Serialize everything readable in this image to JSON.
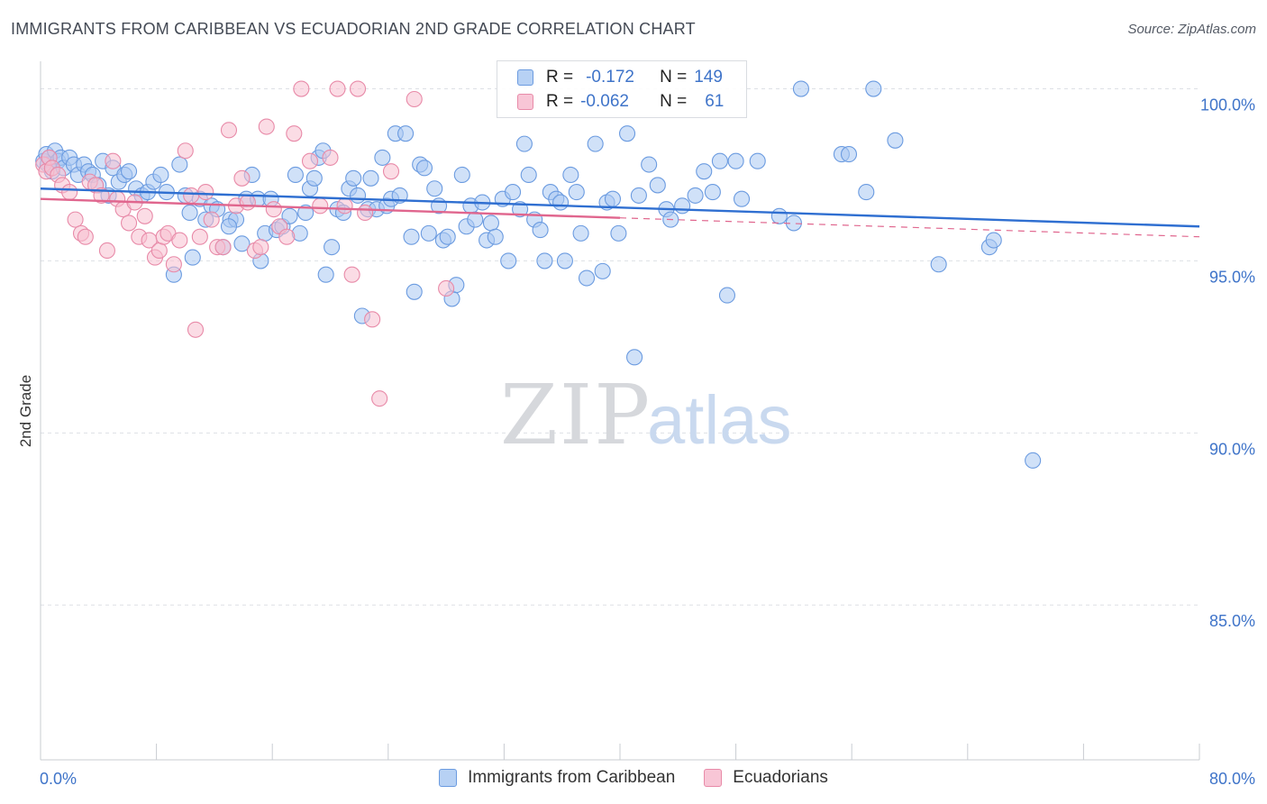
{
  "title": "IMMIGRANTS FROM CARIBBEAN VS ECUADORIAN 2ND GRADE CORRELATION CHART",
  "source": "Source: ZipAtlas.com",
  "watermark": {
    "zip": "ZIP",
    "atlas": "atlas"
  },
  "legend_top": {
    "rows": [
      {
        "r_label": "R =",
        "r_value": "-0.172",
        "n_label": "N =",
        "n_value": "149"
      },
      {
        "r_label": "R =",
        "r_value": "-0.062",
        "n_label": "N =",
        "n_value": "61"
      }
    ]
  },
  "legend_bottom": {
    "items": [
      {
        "label": "Immigrants from Caribbean"
      },
      {
        "label": "Ecuadorians"
      }
    ]
  },
  "colors": {
    "blue_fill": "#a9c8f2",
    "blue_stroke": "#6b9be0",
    "blue_line": "#2f6fd1",
    "pink_fill": "#f7bfd0",
    "pink_stroke": "#e88aa8",
    "pink_line": "#e0668e",
    "axis_text": "#3f74c9",
    "grid": "#dde0e5"
  },
  "chart_data": {
    "type": "scatter",
    "title": "IMMIGRANTS FROM CARIBBEAN VS ECUADORIAN 2ND GRADE CORRELATION CHART",
    "xlabel": "",
    "ylabel": "2nd Grade",
    "xlim": [
      0,
      80
    ],
    "ylim": [
      80.5,
      100.8
    ],
    "x_tick_labels": [
      {
        "value": 0,
        "label": "0.0%"
      },
      {
        "value": 80,
        "label": "80.0%"
      }
    ],
    "y_tick_labels": [
      {
        "value": 100,
        "label": "100.0%"
      },
      {
        "value": 95,
        "label": "95.0%"
      },
      {
        "value": 90,
        "label": "90.0%"
      },
      {
        "value": 85,
        "label": "85.0%"
      }
    ],
    "y_gridlines": [
      100,
      95,
      90,
      85
    ],
    "x_minor_ticks": [
      8,
      16,
      24,
      32,
      40,
      48,
      56,
      64,
      72,
      80
    ],
    "series": [
      {
        "name": "Immigrants from Caribbean",
        "color_key": "blue",
        "r": -0.172,
        "n": 149,
        "trend": {
          "x0": 0,
          "y0": 97.1,
          "x1": 80,
          "y1": 96.0,
          "dash_from": null
        },
        "points": [
          [
            0.2,
            97.9
          ],
          [
            0.4,
            98.1
          ],
          [
            0.5,
            97.8
          ],
          [
            0.6,
            98.0
          ],
          [
            0.8,
            97.6
          ],
          [
            1.0,
            98.2
          ],
          [
            1.2,
            97.9
          ],
          [
            1.4,
            98.0
          ],
          [
            1.6,
            97.7
          ],
          [
            2.0,
            98.0
          ],
          [
            2.3,
            97.8
          ],
          [
            2.6,
            97.5
          ],
          [
            3.0,
            97.8
          ],
          [
            3.3,
            97.6
          ],
          [
            3.6,
            97.5
          ],
          [
            4.0,
            97.2
          ],
          [
            4.3,
            97.9
          ],
          [
            4.7,
            96.9
          ],
          [
            5.0,
            97.7
          ],
          [
            5.4,
            97.3
          ],
          [
            5.8,
            97.5
          ],
          [
            6.1,
            97.6
          ],
          [
            6.6,
            97.1
          ],
          [
            7.0,
            96.9
          ],
          [
            7.4,
            97.0
          ],
          [
            7.8,
            97.3
          ],
          [
            8.3,
            97.5
          ],
          [
            8.7,
            97.0
          ],
          [
            9.2,
            94.6
          ],
          [
            9.6,
            97.8
          ],
          [
            10.0,
            96.9
          ],
          [
            10.3,
            96.4
          ],
          [
            10.5,
            95.1
          ],
          [
            11.0,
            96.8
          ],
          [
            11.4,
            96.2
          ],
          [
            11.8,
            96.6
          ],
          [
            12.2,
            96.5
          ],
          [
            12.6,
            95.4
          ],
          [
            13.1,
            96.2
          ],
          [
            13.5,
            96.2
          ],
          [
            13.9,
            95.5
          ],
          [
            14.2,
            96.8
          ],
          [
            14.6,
            97.5
          ],
          [
            15.0,
            96.8
          ],
          [
            15.2,
            95.0
          ],
          [
            15.5,
            95.8
          ],
          [
            15.9,
            96.8
          ],
          [
            16.3,
            95.9
          ],
          [
            16.7,
            96.0
          ],
          [
            17.2,
            96.3
          ],
          [
            17.6,
            97.5
          ],
          [
            17.9,
            95.8
          ],
          [
            18.3,
            96.4
          ],
          [
            18.6,
            97.1
          ],
          [
            18.9,
            97.4
          ],
          [
            19.2,
            98.0
          ],
          [
            19.5,
            98.2
          ],
          [
            19.7,
            94.6
          ],
          [
            20.1,
            95.4
          ],
          [
            20.5,
            96.5
          ],
          [
            20.9,
            96.4
          ],
          [
            21.3,
            97.1
          ],
          [
            21.6,
            97.4
          ],
          [
            21.9,
            96.9
          ],
          [
            22.2,
            93.4
          ],
          [
            22.6,
            96.5
          ],
          [
            22.8,
            97.4
          ],
          [
            23.2,
            96.5
          ],
          [
            23.6,
            98.0
          ],
          [
            23.9,
            96.6
          ],
          [
            24.2,
            96.8
          ],
          [
            24.5,
            98.7
          ],
          [
            24.8,
            96.9
          ],
          [
            25.2,
            98.7
          ],
          [
            25.6,
            95.7
          ],
          [
            25.8,
            94.1
          ],
          [
            26.2,
            97.8
          ],
          [
            26.5,
            97.7
          ],
          [
            26.8,
            95.8
          ],
          [
            27.2,
            97.1
          ],
          [
            27.5,
            96.6
          ],
          [
            27.8,
            95.6
          ],
          [
            28.1,
            95.7
          ],
          [
            28.4,
            93.9
          ],
          [
            28.7,
            94.3
          ],
          [
            29.1,
            97.5
          ],
          [
            29.4,
            96.0
          ],
          [
            29.7,
            96.6
          ],
          [
            30.0,
            96.2
          ],
          [
            30.5,
            96.7
          ],
          [
            30.8,
            95.6
          ],
          [
            31.1,
            96.1
          ],
          [
            31.4,
            95.7
          ],
          [
            31.9,
            96.8
          ],
          [
            32.3,
            95.0
          ],
          [
            32.6,
            97.0
          ],
          [
            33.1,
            96.5
          ],
          [
            33.4,
            98.4
          ],
          [
            33.7,
            97.5
          ],
          [
            34.1,
            96.2
          ],
          [
            34.5,
            95.9
          ],
          [
            34.8,
            95.0
          ],
          [
            35.2,
            97.0
          ],
          [
            35.6,
            96.8
          ],
          [
            35.9,
            96.7
          ],
          [
            36.2,
            95.0
          ],
          [
            36.6,
            97.5
          ],
          [
            37.0,
            97.0
          ],
          [
            37.3,
            95.8
          ],
          [
            37.7,
            94.5
          ],
          [
            38.3,
            98.4
          ],
          [
            38.8,
            94.7
          ],
          [
            39.1,
            96.7
          ],
          [
            39.5,
            96.8
          ],
          [
            39.9,
            95.8
          ],
          [
            40.5,
            98.7
          ],
          [
            41.0,
            92.2
          ],
          [
            41.3,
            96.9
          ],
          [
            42.0,
            97.8
          ],
          [
            42.6,
            97.2
          ],
          [
            43.2,
            96.5
          ],
          [
            44.3,
            96.6
          ],
          [
            45.2,
            96.9
          ],
          [
            45.8,
            97.6
          ],
          [
            46.4,
            97.0
          ],
          [
            46.9,
            97.9
          ],
          [
            47.4,
            94.0
          ],
          [
            48.0,
            97.9
          ],
          [
            48.4,
            96.8
          ],
          [
            49.5,
            97.9
          ],
          [
            51.0,
            96.3
          ],
          [
            52.0,
            96.1
          ],
          [
            52.5,
            100.0
          ],
          [
            55.3,
            98.1
          ],
          [
            55.8,
            98.1
          ],
          [
            57.0,
            97.0
          ],
          [
            57.5,
            100.0
          ],
          [
            59.0,
            98.5
          ],
          [
            62.0,
            94.9
          ],
          [
            65.5,
            95.4
          ],
          [
            65.8,
            95.6
          ],
          [
            68.5,
            89.2
          ],
          [
            43.5,
            96.2
          ],
          [
            13.0,
            96.0
          ]
        ]
      },
      {
        "name": "Ecuadorians",
        "color_key": "pink",
        "r": -0.062,
        "n": 61,
        "trend": {
          "x0": 0,
          "y0": 96.8,
          "x1": 80,
          "y1": 95.7,
          "dash_from": 40
        },
        "points": [
          [
            0.2,
            97.8
          ],
          [
            0.4,
            97.6
          ],
          [
            0.6,
            98.0
          ],
          [
            0.8,
            97.7
          ],
          [
            1.2,
            97.5
          ],
          [
            1.5,
            97.2
          ],
          [
            2.0,
            97.0
          ],
          [
            2.4,
            96.2
          ],
          [
            2.8,
            95.8
          ],
          [
            3.1,
            95.7
          ],
          [
            3.4,
            97.3
          ],
          [
            3.8,
            97.2
          ],
          [
            4.2,
            96.9
          ],
          [
            4.6,
            95.3
          ],
          [
            5.0,
            97.9
          ],
          [
            5.3,
            96.8
          ],
          [
            5.7,
            96.5
          ],
          [
            6.1,
            96.1
          ],
          [
            6.5,
            96.7
          ],
          [
            6.8,
            95.7
          ],
          [
            7.2,
            96.3
          ],
          [
            7.5,
            95.6
          ],
          [
            7.9,
            95.1
          ],
          [
            8.2,
            95.3
          ],
          [
            8.5,
            95.7
          ],
          [
            8.8,
            95.8
          ],
          [
            9.2,
            94.9
          ],
          [
            9.6,
            95.6
          ],
          [
            10.0,
            98.2
          ],
          [
            10.4,
            96.9
          ],
          [
            10.7,
            93.0
          ],
          [
            11.0,
            95.7
          ],
          [
            11.4,
            97.0
          ],
          [
            11.8,
            96.2
          ],
          [
            12.2,
            95.4
          ],
          [
            12.6,
            95.4
          ],
          [
            13.0,
            98.8
          ],
          [
            13.5,
            96.6
          ],
          [
            13.9,
            97.4
          ],
          [
            14.3,
            96.7
          ],
          [
            14.8,
            95.3
          ],
          [
            15.2,
            95.4
          ],
          [
            15.6,
            98.9
          ],
          [
            16.1,
            96.5
          ],
          [
            16.5,
            96.0
          ],
          [
            17.0,
            95.7
          ],
          [
            17.5,
            98.7
          ],
          [
            18.0,
            100.0
          ],
          [
            18.6,
            97.9
          ],
          [
            19.3,
            96.6
          ],
          [
            20.0,
            98.0
          ],
          [
            20.5,
            100.0
          ],
          [
            21.0,
            96.6
          ],
          [
            21.5,
            94.6
          ],
          [
            21.9,
            100.0
          ],
          [
            22.4,
            96.4
          ],
          [
            22.9,
            93.3
          ],
          [
            23.4,
            91.0
          ],
          [
            24.2,
            97.6
          ],
          [
            25.8,
            99.7
          ],
          [
            28.0,
            94.2
          ]
        ]
      }
    ]
  }
}
